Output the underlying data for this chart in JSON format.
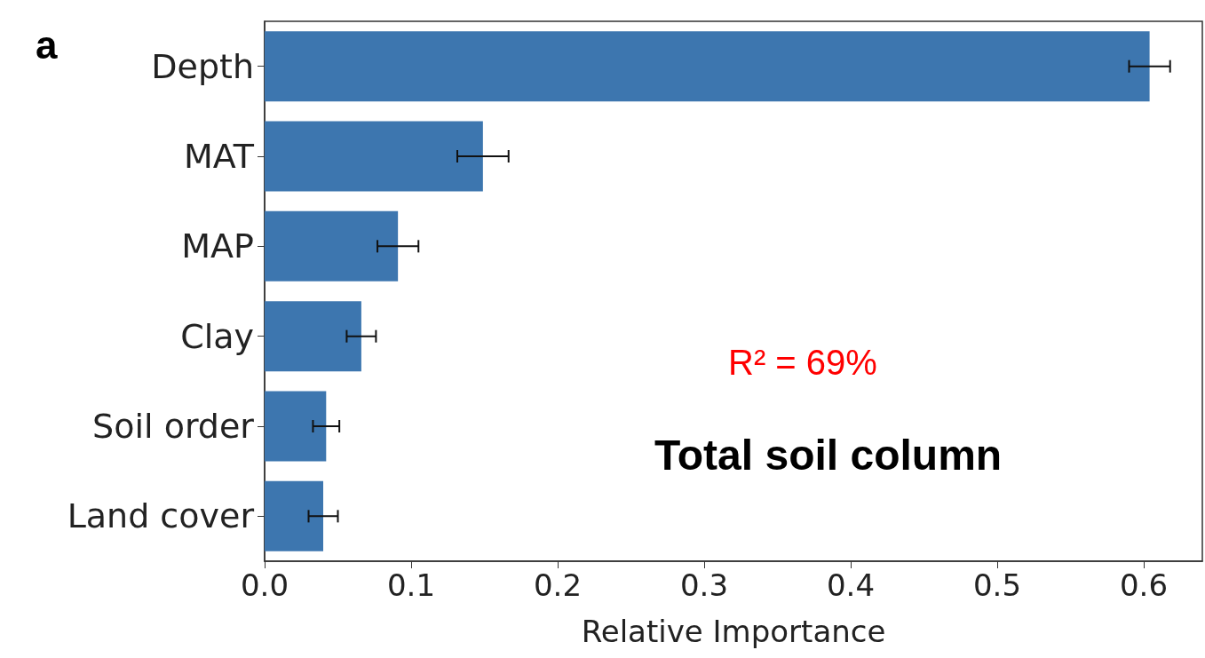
{
  "chart_data": {
    "type": "bar",
    "orientation": "horizontal",
    "xlabel": "Relative Importance",
    "categories": [
      "Depth",
      "MAT",
      "MAP",
      "Clay",
      "Soil order",
      "Land cover"
    ],
    "values": [
      0.604,
      0.149,
      0.091,
      0.066,
      0.042,
      0.04
    ],
    "errors": [
      0.014,
      0.0175,
      0.014,
      0.01,
      0.009,
      0.01
    ],
    "color": "#3d76af",
    "xlim": [
      0,
      0.64
    ],
    "xticks": [
      {
        "value": 0,
        "label": "0.0"
      },
      0.1,
      0.2,
      0.3,
      0.4,
      0.5,
      0.6
    ],
    "annotations": [
      "a",
      "R² = 69%",
      "Total soil column"
    ],
    "grid": false
  }
}
